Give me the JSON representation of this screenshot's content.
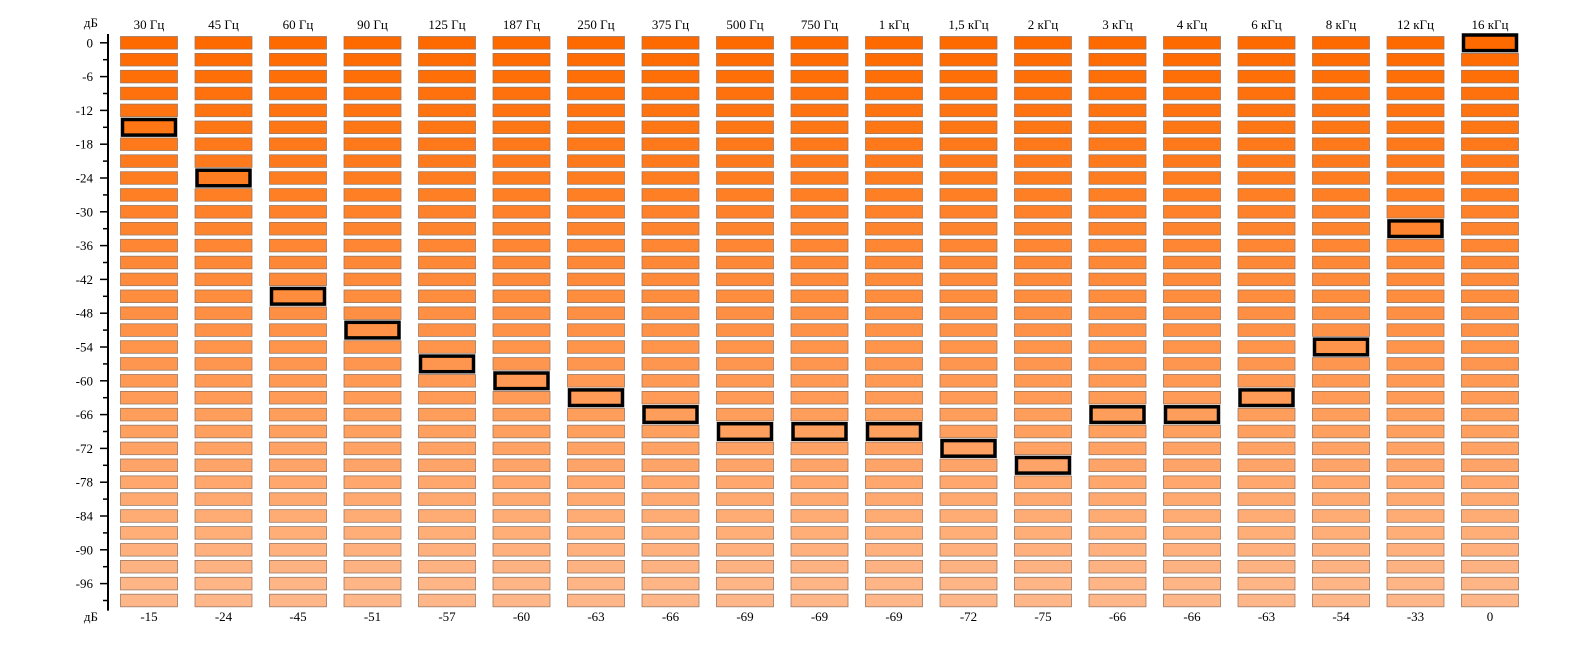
{
  "chart_data": {
    "type": "bar",
    "title": "",
    "unit_top": "дБ",
    "unit_bottom": "дБ",
    "ylim": [
      -99,
      0
    ],
    "segment_db": 3,
    "y_tick_step_minor": 3,
    "y_tick_step_major": 6,
    "y_tick_labels": [
      "0",
      "-6",
      "-12",
      "-18",
      "-24",
      "-30",
      "-36",
      "-42",
      "-48",
      "-54",
      "-60",
      "-66",
      "-72",
      "-78",
      "-84",
      "-90",
      "-96"
    ],
    "categories": [
      "30 Гц",
      "45 Гц",
      "60 Гц",
      "90 Гц",
      "125 Гц",
      "187 Гц",
      "250 Гц",
      "375 Гц",
      "500 Гц",
      "750 Гц",
      "1 кГц",
      "1,5 кГц",
      "2 кГц",
      "3 кГц",
      "4 кГц",
      "6 кГц",
      "8 кГц",
      "12 кГц",
      "16 кГц"
    ],
    "values": [
      -15,
      -24,
      -45,
      -51,
      -57,
      -60,
      -63,
      -66,
      -69,
      -69,
      -69,
      -72,
      -75,
      -66,
      -66,
      -63,
      -54,
      -33,
      0
    ],
    "value_labels": [
      "-15",
      "-24",
      "-45",
      "-51",
      "-57",
      "-60",
      "-63",
      "-66",
      "-69",
      "-69",
      "-69",
      "-72",
      "-75",
      "-66",
      "-66",
      "-63",
      "-54",
      "-33",
      "0"
    ],
    "colors": {
      "segment_top": "#ff6a00",
      "segment_bottom": "#ffb789",
      "segment_border": "#9a7a66",
      "marker_border": "#000000",
      "axis": "#000000"
    }
  }
}
